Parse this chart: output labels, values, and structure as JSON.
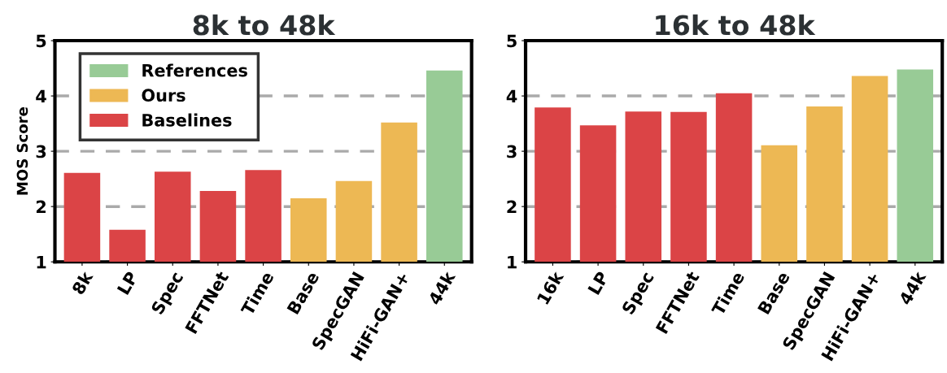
{
  "chart_data": [
    {
      "type": "bar",
      "title": "8k to 48k",
      "ylabel": "MOS Score",
      "categories": [
        "8k",
        "LP",
        "Spec",
        "FFTNet",
        "Time",
        "Base",
        "SpecGAN",
        "HiFi-GAN+",
        "44k"
      ],
      "series": [
        {
          "name": "References",
          "color": "#98cb96",
          "values": [
            null,
            null,
            null,
            null,
            null,
            null,
            null,
            null,
            4.46
          ]
        },
        {
          "name": "Ours",
          "color": "#edb854",
          "values": [
            null,
            null,
            null,
            null,
            null,
            2.15,
            2.46,
            3.52,
            null
          ]
        },
        {
          "name": "Baselines",
          "color": "#db4446",
          "values": [
            2.61,
            1.58,
            2.63,
            2.28,
            2.66,
            null,
            null,
            null,
            null
          ]
        }
      ],
      "ylim": [
        1,
        5
      ],
      "yticks": [
        1,
        2,
        3,
        4,
        5
      ],
      "grid": "y",
      "legend": "top left"
    },
    {
      "type": "bar",
      "title": "16k to 48k",
      "categories": [
        "16k",
        "LP",
        "Spec",
        "FFTNet",
        "Time",
        "Base",
        "SpecGAN",
        "HiFi-GAN+",
        "44k"
      ],
      "series": [
        {
          "color": "#98cb96",
          "values": [
            null,
            null,
            null,
            null,
            null,
            null,
            null,
            null,
            4.48
          ]
        },
        {
          "color": "#edb854",
          "values": [
            null,
            null,
            null,
            null,
            null,
            3.11,
            3.81,
            4.36,
            null
          ]
        },
        {
          "color": "#db4446",
          "values": [
            3.79,
            3.47,
            3.72,
            3.71,
            4.05,
            null,
            null,
            null,
            null
          ]
        }
      ],
      "ylim": [
        1,
        5
      ],
      "yticks": [
        1,
        2,
        3,
        4,
        5
      ],
      "grid": "y",
      "legend": false
    }
  ]
}
